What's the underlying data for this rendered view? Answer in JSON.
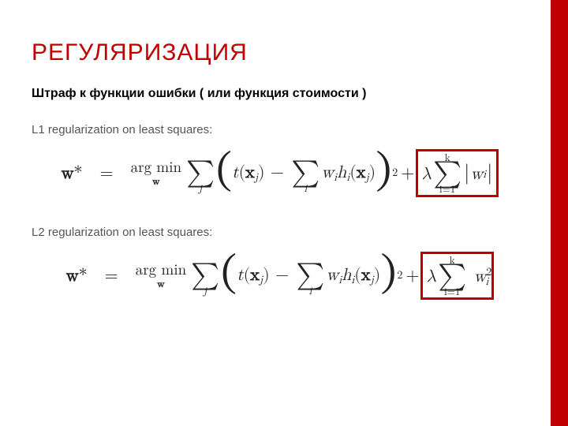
{
  "colors": {
    "accent": "#c00000",
    "title": "#c00000",
    "body_text": "#555555",
    "highlight_border": "#c00000",
    "background": "#ffffff"
  },
  "title": "РЕГУЛЯРИЗАЦИЯ",
  "subtitle": "Штраф к функции ошибки ( или функция стоимости )",
  "sections": [
    {
      "label": "L1 regularization on least squares:",
      "formula": {
        "lhs": "w*",
        "argmin_over": "w",
        "outer_sum_index": "j",
        "inner": "t(xj) − Σi wi hi(xj)",
        "squared": true,
        "reg": {
          "symbol": "λ",
          "sum_from": "i=1",
          "sum_to": "k",
          "term": "|wi|",
          "type": "L1"
        }
      }
    },
    {
      "label": "L2 regularization on least squares:",
      "formula": {
        "lhs": "w*",
        "argmin_over": "w",
        "outer_sum_index": "j",
        "inner": "t(xj) − Σi wi hi(xj)",
        "squared": true,
        "reg": {
          "symbol": "λ",
          "sum_from": "i=1",
          "sum_to": "k",
          "term": "wi²",
          "type": "L2"
        }
      }
    }
  ],
  "typography": {
    "title_fontsize": 30,
    "subtitle_fontsize": 16,
    "body_fontsize": 15,
    "formula_fontsize": 22
  }
}
